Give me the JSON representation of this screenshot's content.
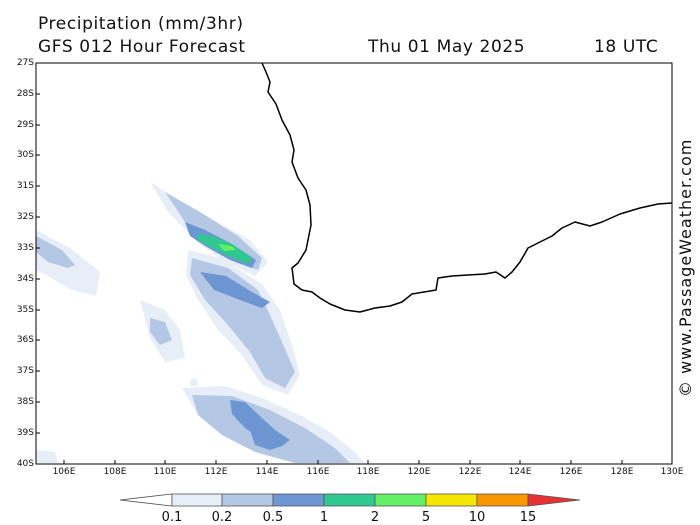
{
  "header": {
    "title": "Precipitation (mm/3hr)",
    "subtitle": "GFS 012 Hour Forecast",
    "date": "Thu 01 May 2025",
    "time": "18 UTC"
  },
  "credit": "© www.PassageWeather.com",
  "lat_labels": [
    "27S",
    "28S",
    "29S",
    "30S",
    "31S",
    "32S",
    "33S",
    "34S",
    "35S",
    "36S",
    "37S",
    "38S",
    "39S",
    "40S"
  ],
  "lon_labels": [
    "106E",
    "108E",
    "110E",
    "112E",
    "114E",
    "116E",
    "118E",
    "120E",
    "122E",
    "124E",
    "126E",
    "128E",
    "130E"
  ],
  "colorbar": {
    "labels": [
      "0.1",
      "0.2",
      "0.5",
      "1",
      "2",
      "5",
      "10",
      "15"
    ],
    "colors": [
      "#ffffff",
      "#e8eef8",
      "#b4c8e6",
      "#6e96d2",
      "#2ec890",
      "#64f064",
      "#f5e600",
      "#fa9600",
      "#e63232"
    ]
  },
  "map": {
    "region": "South-west Western Australia",
    "land_color": "#ffffff",
    "coast_color": "#000000"
  }
}
